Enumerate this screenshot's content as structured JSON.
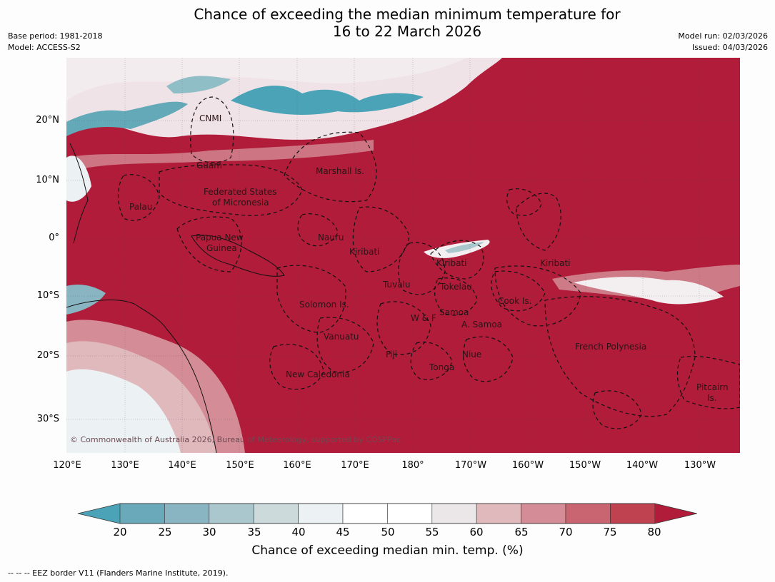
{
  "title": {
    "line1": "Chance of exceeding the median minimum temperature for",
    "line2": "16 to 22 March 2026"
  },
  "meta": {
    "base_period": "Base period: 1981-2018",
    "model": "Model: ACCESS-S2",
    "model_run": "Model run: 02/03/2026",
    "issued": "Issued: 04/03/2026"
  },
  "map": {
    "background_color": "#b01c39",
    "copyright": "© Commonwealth of Australia 2026, Bureau of Meteorology, supported by COSPPac",
    "lat_ticks": [
      "20°N",
      "10°N",
      "0°",
      "10°S",
      "20°S",
      "30°S"
    ],
    "lon_ticks": [
      "120°E",
      "130°E",
      "140°E",
      "150°E",
      "160°E",
      "170°E",
      "180°",
      "170°W",
      "160°W",
      "150°W",
      "140°W",
      "130°W"
    ],
    "region_labels": [
      "CNMI",
      "Guam",
      "Marshall Is.",
      "Federated States",
      "of Micronesia",
      "Palau",
      "Papua New",
      "Guinea",
      "Nauru",
      "Kiribati",
      "Kiribati",
      "Kiribati",
      "Tuvalu",
      "Tokelau",
      "Solomon Is.",
      "Samoa",
      "W & F",
      "A. Samoa",
      "Cook Is.",
      "Vanuatu",
      "Fiji",
      "Niue",
      "Tonga",
      "French Polynesia",
      "New Caledonia",
      "Pitcairn",
      "Is."
    ]
  },
  "colorbar": {
    "ticks": [
      "20",
      "25",
      "30",
      "35",
      "40",
      "45",
      "50",
      "55",
      "60",
      "65",
      "70",
      "75",
      "80"
    ],
    "colors": [
      "#4aa3b6",
      "#6aa9b9",
      "#88b5c1",
      "#a9c7cc",
      "#ccdadb",
      "#ecf2f4",
      "#ffffff",
      "#ffffff",
      "#ebe7e8",
      "#e0b9bd",
      "#d48c96",
      "#c96570",
      "#bf4250",
      "#b01c39"
    ],
    "label": "Chance of exceeding median min. temp. (%)"
  },
  "footnote": "--  --  -- EEZ border V11 (Flanders Marine Institute, 2019)."
}
